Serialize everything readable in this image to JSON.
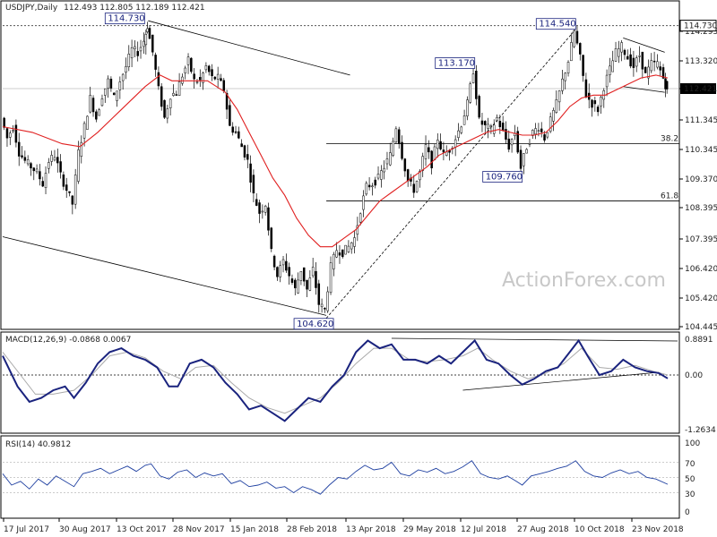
{
  "header": {
    "symbol_label": "USDJPY,Daily",
    "ohlc": "112.493 112.805 112.189 112.421"
  },
  "watermark": "ActionForex.com",
  "chart_data": [
    {
      "type": "candlestick",
      "panel": "price",
      "title": "USDJPY,Daily",
      "ylim": [
        104.3,
        115.4
      ],
      "y_ticks": [
        "114.295",
        "113.320",
        "112.421",
        "111.345",
        "110.345",
        "109.370",
        "108.395",
        "107.395",
        "106.420",
        "105.420",
        "104.445"
      ],
      "last_price": "112.421",
      "x_labels": [
        "17 Jul 2017",
        "30 Aug 2017",
        "13 Oct 2017",
        "28 Nov 2017",
        "15 Jan 2018",
        "28 Feb 2018",
        "13 Apr 2018",
        "29 May 2018",
        "12 Jul 2018",
        "27 Aug 2018",
        "10 Oct 2018",
        "23 Nov 2018"
      ],
      "close_path": [
        [
          0,
          111.5
        ],
        [
          4,
          110.8
        ],
        [
          8,
          111.2
        ],
        [
          12,
          110.3
        ],
        [
          16,
          110.0
        ],
        [
          20,
          109.8
        ],
        [
          24,
          109.6
        ],
        [
          28,
          109.2
        ],
        [
          32,
          110.0
        ],
        [
          36,
          110.2
        ],
        [
          40,
          109.5
        ],
        [
          44,
          109.0
        ],
        [
          48,
          108.5
        ],
        [
          52,
          110.3
        ],
        [
          56,
          111.2
        ],
        [
          60,
          112.2
        ],
        [
          64,
          111.5
        ],
        [
          68,
          112.3
        ],
        [
          72,
          112.8
        ],
        [
          76,
          112.2
        ],
        [
          80,
          112.8
        ],
        [
          84,
          113.3
        ],
        [
          88,
          113.9
        ],
        [
          92,
          113.8
        ],
        [
          96,
          114.2
        ],
        [
          98,
          114.73
        ],
        [
          102,
          113.8
        ],
        [
          106,
          112.5
        ],
        [
          110,
          111.5
        ],
        [
          114,
          112.3
        ],
        [
          118,
          112.4
        ],
        [
          122,
          113.0
        ],
        [
          126,
          113.5
        ],
        [
          130,
          112.8
        ],
        [
          134,
          112.8
        ],
        [
          138,
          113.3
        ],
        [
          142,
          112.9
        ],
        [
          146,
          112.9
        ],
        [
          150,
          112.5
        ],
        [
          154,
          111.2
        ],
        [
          158,
          111.0
        ],
        [
          162,
          110.5
        ],
        [
          166,
          110.0
        ],
        [
          170,
          108.8
        ],
        [
          174,
          108.2
        ],
        [
          178,
          108.5
        ],
        [
          182,
          106.8
        ],
        [
          186,
          106.0
        ],
        [
          190,
          106.5
        ],
        [
          194,
          106.0
        ],
        [
          198,
          105.5
        ],
        [
          202,
          106.2
        ],
        [
          206,
          105.5
        ],
        [
          210,
          106.2
        ],
        [
          214,
          105.0
        ],
        [
          218,
          104.8
        ],
        [
          222,
          106.3
        ],
        [
          226,
          106.9
        ],
        [
          230,
          106.8
        ],
        [
          234,
          107.0
        ],
        [
          238,
          107.3
        ],
        [
          242,
          108.3
        ],
        [
          246,
          109.1
        ],
        [
          250,
          109.2
        ],
        [
          254,
          109.4
        ],
        [
          258,
          109.8
        ],
        [
          262,
          110.2
        ],
        [
          266,
          111.2
        ],
        [
          270,
          110.2
        ],
        [
          274,
          109.3
        ],
        [
          278,
          109.0
        ],
        [
          282,
          109.6
        ],
        [
          286,
          110.5
        ],
        [
          290,
          109.9
        ],
        [
          294,
          110.8
        ],
        [
          298,
          110.2
        ],
        [
          302,
          110.4
        ],
        [
          306,
          110.8
        ],
        [
          310,
          111.3
        ],
        [
          314,
          112.0
        ],
        [
          318,
          113.17
        ],
        [
          322,
          111.4
        ],
        [
          326,
          111.2
        ],
        [
          330,
          111.1
        ],
        [
          334,
          111.5
        ],
        [
          338,
          111.0
        ],
        [
          342,
          110.5
        ],
        [
          346,
          111.0
        ],
        [
          350,
          109.76
        ],
        [
          354,
          110.5
        ],
        [
          358,
          111.0
        ],
        [
          362,
          111.2
        ],
        [
          366,
          110.8
        ],
        [
          370,
          111.4
        ],
        [
          374,
          112.0
        ],
        [
          378,
          112.8
        ],
        [
          382,
          113.5
        ],
        [
          386,
          114.54
        ],
        [
          390,
          113.6
        ],
        [
          394,
          112.3
        ],
        [
          398,
          112.0
        ],
        [
          402,
          111.8
        ],
        [
          406,
          112.6
        ],
        [
          410,
          113.2
        ],
        [
          414,
          113.8
        ],
        [
          418,
          114.0
        ],
        [
          422,
          113.6
        ],
        [
          426,
          113.3
        ],
        [
          430,
          113.7
        ],
        [
          434,
          113.0
        ],
        [
          438,
          113.4
        ],
        [
          442,
          113.4
        ],
        [
          446,
          112.9
        ],
        [
          448,
          112.421
        ]
      ],
      "moving_average_path": [
        [
          0,
          111.2
        ],
        [
          20,
          111.0
        ],
        [
          40,
          110.6
        ],
        [
          52,
          110.5
        ],
        [
          64,
          111.0
        ],
        [
          80,
          111.8
        ],
        [
          96,
          112.6
        ],
        [
          106,
          113.0
        ],
        [
          114,
          112.8
        ],
        [
          126,
          112.8
        ],
        [
          138,
          112.8
        ],
        [
          150,
          112.4
        ],
        [
          158,
          111.8
        ],
        [
          166,
          111.0
        ],
        [
          174,
          110.2
        ],
        [
          182,
          109.4
        ],
        [
          190,
          108.8
        ],
        [
          198,
          108.0
        ],
        [
          206,
          107.4
        ],
        [
          214,
          107.0
        ],
        [
          222,
          107.0
        ],
        [
          230,
          107.3
        ],
        [
          238,
          107.6
        ],
        [
          246,
          108.1
        ],
        [
          254,
          108.6
        ],
        [
          262,
          108.9
        ],
        [
          270,
          109.2
        ],
        [
          278,
          109.5
        ],
        [
          286,
          109.8
        ],
        [
          294,
          110.2
        ],
        [
          302,
          110.4
        ],
        [
          310,
          110.6
        ],
        [
          318,
          110.8
        ],
        [
          326,
          111.0
        ],
        [
          334,
          111.1
        ],
        [
          342,
          111.0
        ],
        [
          350,
          110.9
        ],
        [
          358,
          110.9
        ],
        [
          366,
          111.0
        ],
        [
          374,
          111.4
        ],
        [
          382,
          111.9
        ],
        [
          390,
          112.2
        ],
        [
          398,
          112.3
        ],
        [
          406,
          112.3
        ],
        [
          414,
          112.5
        ],
        [
          422,
          112.7
        ],
        [
          430,
          112.9
        ],
        [
          440,
          113.0
        ],
        [
          448,
          112.9
        ]
      ],
      "annotations": [
        {
          "text": "114.730",
          "x": 98,
          "y": 114.73
        },
        {
          "text": "114.540",
          "x": 386,
          "y": 114.54
        },
        {
          "text": "113.170",
          "x": 318,
          "y": 113.17
        },
        {
          "text": "109.760",
          "x": 350,
          "y": 109.76
        },
        {
          "text": "104.620",
          "x": 218,
          "y": 104.62
        }
      ],
      "fib_levels": [
        {
          "text": "38.2",
          "y": 110.6
        },
        {
          "text": "61.8",
          "y": 108.6
        }
      ]
    },
    {
      "type": "line",
      "panel": "macd",
      "title": "MACD(12,26,9) -0.0868 0.0067",
      "ylim": [
        -1.3,
        1.0
      ],
      "y_ticks": [
        "0.8891",
        "0.00",
        "-1.2634"
      ],
      "macd_path": [
        [
          0,
          0.5
        ],
        [
          10,
          -0.3
        ],
        [
          18,
          -0.7
        ],
        [
          26,
          -0.6
        ],
        [
          34,
          -0.4
        ],
        [
          42,
          -0.3
        ],
        [
          48,
          -0.6
        ],
        [
          56,
          -0.2
        ],
        [
          64,
          0.3
        ],
        [
          72,
          0.6
        ],
        [
          80,
          0.7
        ],
        [
          88,
          0.5
        ],
        [
          96,
          0.4
        ],
        [
          104,
          0.2
        ],
        [
          112,
          -0.3
        ],
        [
          118,
          -0.3
        ],
        [
          126,
          0.3
        ],
        [
          134,
          0.4
        ],
        [
          142,
          0.2
        ],
        [
          150,
          -0.2
        ],
        [
          158,
          -0.5
        ],
        [
          166,
          -0.9
        ],
        [
          174,
          -0.8
        ],
        [
          182,
          -1.0
        ],
        [
          190,
          -1.2
        ],
        [
          198,
          -0.9
        ],
        [
          206,
          -0.6
        ],
        [
          214,
          -0.7
        ],
        [
          222,
          -0.3
        ],
        [
          230,
          0.0
        ],
        [
          238,
          0.6
        ],
        [
          246,
          0.9
        ],
        [
          254,
          0.7
        ],
        [
          262,
          0.8
        ],
        [
          270,
          0.4
        ],
        [
          278,
          0.4
        ],
        [
          286,
          0.3
        ],
        [
          294,
          0.5
        ],
        [
          302,
          0.3
        ],
        [
          310,
          0.6
        ],
        [
          318,
          0.9
        ],
        [
          326,
          0.4
        ],
        [
          334,
          0.3
        ],
        [
          342,
          0.0
        ],
        [
          350,
          -0.25
        ],
        [
          358,
          -0.1
        ],
        [
          366,
          0.1
        ],
        [
          374,
          0.2
        ],
        [
          382,
          0.6
        ],
        [
          388,
          0.9
        ],
        [
          394,
          0.5
        ],
        [
          402,
          0.0
        ],
        [
          410,
          0.1
        ],
        [
          418,
          0.4
        ],
        [
          426,
          0.2
        ],
        [
          434,
          0.1
        ],
        [
          442,
          0.05
        ],
        [
          448,
          -0.09
        ]
      ],
      "signal_path": [
        [
          0,
          0.6
        ],
        [
          12,
          0.0
        ],
        [
          22,
          -0.5
        ],
        [
          34,
          -0.5
        ],
        [
          48,
          -0.4
        ],
        [
          60,
          0.0
        ],
        [
          72,
          0.5
        ],
        [
          84,
          0.6
        ],
        [
          96,
          0.45
        ],
        [
          108,
          0.1
        ],
        [
          120,
          -0.1
        ],
        [
          130,
          0.2
        ],
        [
          142,
          0.25
        ],
        [
          154,
          -0.2
        ],
        [
          166,
          -0.6
        ],
        [
          178,
          -0.85
        ],
        [
          190,
          -1.0
        ],
        [
          202,
          -0.8
        ],
        [
          214,
          -0.6
        ],
        [
          226,
          -0.2
        ],
        [
          238,
          0.3
        ],
        [
          250,
          0.7
        ],
        [
          262,
          0.7
        ],
        [
          274,
          0.4
        ],
        [
          286,
          0.35
        ],
        [
          298,
          0.4
        ],
        [
          310,
          0.5
        ],
        [
          320,
          0.7
        ],
        [
          330,
          0.4
        ],
        [
          342,
          0.1
        ],
        [
          354,
          -0.1
        ],
        [
          366,
          0.05
        ],
        [
          378,
          0.3
        ],
        [
          390,
          0.7
        ],
        [
          402,
          0.2
        ],
        [
          414,
          0.15
        ],
        [
          426,
          0.25
        ],
        [
          438,
          0.1
        ],
        [
          448,
          0.0
        ]
      ]
    },
    {
      "type": "line",
      "panel": "rsi",
      "title": "RSI(14) 40.9812",
      "ylim": [
        0,
        100
      ],
      "y_ticks": [
        "100",
        "70",
        "50",
        "30",
        "0"
      ],
      "rsi_path": [
        [
          0,
          55
        ],
        [
          6,
          40
        ],
        [
          12,
          45
        ],
        [
          18,
          35
        ],
        [
          24,
          48
        ],
        [
          30,
          40
        ],
        [
          36,
          52
        ],
        [
          42,
          45
        ],
        [
          48,
          38
        ],
        [
          54,
          55
        ],
        [
          60,
          58
        ],
        [
          66,
          62
        ],
        [
          72,
          55
        ],
        [
          78,
          60
        ],
        [
          84,
          65
        ],
        [
          90,
          58
        ],
        [
          96,
          66
        ],
        [
          100,
          68
        ],
        [
          106,
          52
        ],
        [
          112,
          48
        ],
        [
          118,
          57
        ],
        [
          124,
          60
        ],
        [
          130,
          50
        ],
        [
          136,
          56
        ],
        [
          142,
          52
        ],
        [
          148,
          55
        ],
        [
          154,
          42
        ],
        [
          160,
          46
        ],
        [
          166,
          38
        ],
        [
          172,
          40
        ],
        [
          178,
          44
        ],
        [
          184,
          36
        ],
        [
          190,
          38
        ],
        [
          196,
          30
        ],
        [
          202,
          38
        ],
        [
          208,
          34
        ],
        [
          214,
          28
        ],
        [
          220,
          40
        ],
        [
          226,
          50
        ],
        [
          232,
          48
        ],
        [
          238,
          58
        ],
        [
          244,
          66
        ],
        [
          250,
          60
        ],
        [
          256,
          62
        ],
        [
          262,
          70
        ],
        [
          268,
          55
        ],
        [
          274,
          52
        ],
        [
          280,
          60
        ],
        [
          286,
          57
        ],
        [
          292,
          62
        ],
        [
          298,
          55
        ],
        [
          304,
          58
        ],
        [
          310,
          64
        ],
        [
          316,
          72
        ],
        [
          322,
          55
        ],
        [
          328,
          50
        ],
        [
          334,
          48
        ],
        [
          340,
          52
        ],
        [
          346,
          45
        ],
        [
          350,
          40
        ],
        [
          356,
          52
        ],
        [
          362,
          55
        ],
        [
          368,
          58
        ],
        [
          374,
          62
        ],
        [
          380,
          65
        ],
        [
          386,
          72
        ],
        [
          392,
          58
        ],
        [
          398,
          52
        ],
        [
          404,
          50
        ],
        [
          410,
          56
        ],
        [
          416,
          60
        ],
        [
          422,
          55
        ],
        [
          428,
          58
        ],
        [
          434,
          50
        ],
        [
          440,
          48
        ],
        [
          448,
          41
        ]
      ]
    }
  ]
}
